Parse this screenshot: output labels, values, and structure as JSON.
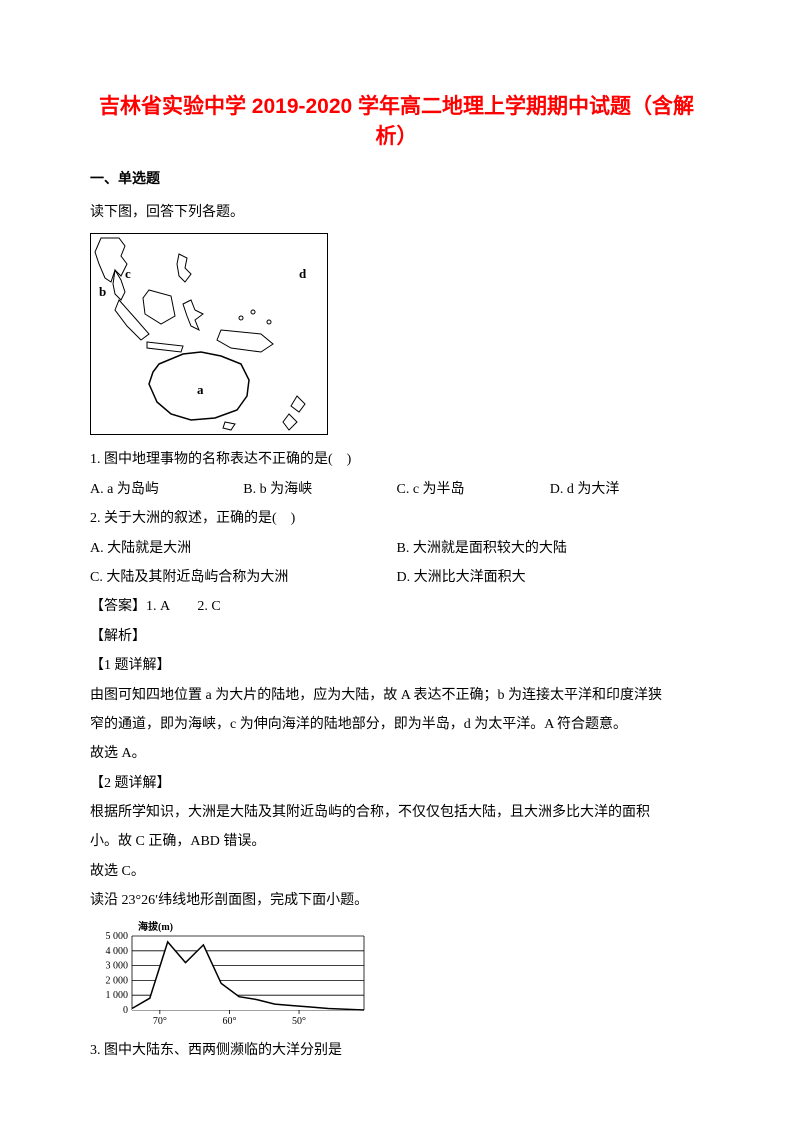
{
  "title": "吉林省实验中学 2019-2020 学年高二地理上学期期中试题（含解析）",
  "section1": "一、单选题",
  "intro1": "读下图，回答下列各题。",
  "map": {
    "b": "b",
    "c": "c",
    "d": "d",
    "a": "a"
  },
  "q1": {
    "stem": "1. 图中地理事物的名称表达不正确的是(　)",
    "A": "A. a 为岛屿",
    "B": "B. b 为海峡",
    "C": "C. c 为半岛",
    "D": "D. d 为大洋"
  },
  "q2": {
    "stem": "2. 关于大洲的叙述，正确的是(　)",
    "A": "A. 大陆就是大洲",
    "B": "B. 大洲就是面积较大的大陆",
    "C": "C. 大陆及其附近岛屿合称为大洲",
    "D": "D. 大洲比大洋面积大"
  },
  "ans12": "【答案】1. A　　2. C",
  "jiexi": "【解析】",
  "q1detail_h": "【1 题详解】",
  "q1detail_1": "由图可知四地位置 a 为大片的陆地，应为大陆，故 A 表达不正确；b 为连接太平洋和印度洋狭",
  "q1detail_2": "窄的通道，即为海峡，c 为伸向海洋的陆地部分，即为半岛，d 为太平洋。A 符合题意。",
  "q1detail_3": "故选 A。",
  "q2detail_h": "【2 题详解】",
  "q2detail_1": "根据所学知识，大洲是大陆及其附近岛屿的合称，不仅仅包括大陆，且大洲多比大洋的面积",
  "q2detail_2": "小。故 C 正确，ABD 错误。",
  "q2detail_3": "故选 C。",
  "intro2": "读沿 23°26′纬线地形剖面图，完成下面小题。",
  "profile": {
    "ylabel": "海拔(m)",
    "yticks": [
      "5 000",
      "4 000",
      "3 000",
      "2 000",
      "1 000",
      "0"
    ],
    "xticks": [
      "70°",
      "60°",
      "50°"
    ],
    "values": [
      100,
      800,
      4600,
      3200,
      4400,
      1800,
      900,
      700,
      400,
      300,
      200,
      100,
      50,
      0
    ],
    "line_color": "#000000",
    "fill_color": "#ffffff",
    "grid_color": "#000000",
    "font_size": 10
  },
  "q3": {
    "stem": "3. 图中大陆东、西两侧濒临的大洋分别是"
  }
}
